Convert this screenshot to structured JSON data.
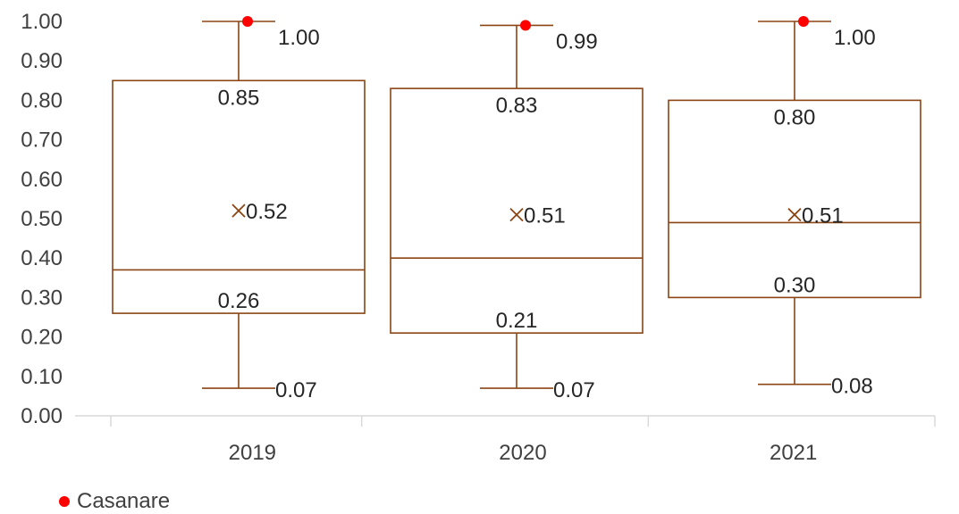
{
  "chart_data": {
    "type": "box",
    "categories": [
      "2019",
      "2020",
      "2021"
    ],
    "ylim": [
      0,
      1
    ],
    "yticks": [
      "0.00",
      "0.10",
      "0.20",
      "0.30",
      "0.40",
      "0.50",
      "0.60",
      "0.70",
      "0.80",
      "0.90",
      "1.00"
    ],
    "boxes": [
      {
        "min": 0.07,
        "q1": 0.26,
        "median": 0.37,
        "q3": 0.85,
        "max": 1.0,
        "mean": 0.52,
        "labels": {
          "min": "0.07",
          "q1": "0.26",
          "q3": "0.85",
          "max": "1.00",
          "mean": "0.52"
        }
      },
      {
        "min": 0.07,
        "q1": 0.21,
        "median": 0.4,
        "q3": 0.83,
        "max": 0.99,
        "mean": 0.51,
        "labels": {
          "min": "0.07",
          "q1": "0.21",
          "q3": "0.83",
          "max": "0.99",
          "mean": "0.51"
        }
      },
      {
        "min": 0.08,
        "q1": 0.3,
        "median": 0.49,
        "q3": 0.8,
        "max": 1.0,
        "mean": 0.51,
        "labels": {
          "min": "0.08",
          "q1": "0.30",
          "q3": "0.80",
          "max": "1.00",
          "mean": "0.51"
        }
      }
    ],
    "highlight_series": {
      "name": "Casanare",
      "values": [
        1.0,
        0.99,
        1.0
      ],
      "color": "#ff0000"
    },
    "box_color": "#8b4513",
    "legend_position": "bottom-left",
    "grid": false
  }
}
